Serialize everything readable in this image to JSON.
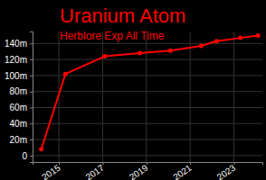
{
  "chart_data": {
    "type": "line",
    "title": "Uranium Atom",
    "subtitle": "Herblore Exp All Time",
    "x": [
      2014.2,
      2015.3,
      2017.1,
      2018.7,
      2020.1,
      2021.5,
      2022.2,
      2023.3,
      2024.1
    ],
    "values": [
      8,
      102,
      124,
      128,
      131,
      137,
      143,
      147,
      150
    ],
    "color": "#ff0000",
    "marker": "circle",
    "line_style": "solid",
    "xlim": [
      2013.8,
      2024.3
    ],
    "xticks": [
      2015,
      2017,
      2019,
      2021,
      2023
    ],
    "ylim": [
      -8,
      155
    ],
    "yticks": [
      0,
      {
        "value": 20,
        "label": "20m"
      },
      {
        "value": 40,
        "label": "40m"
      },
      {
        "value": 60,
        "label": "60m"
      },
      {
        "value": 80,
        "label": "80m"
      },
      {
        "value": 100,
        "label": "100m"
      },
      {
        "value": 120,
        "label": "120m"
      },
      {
        "value": 140,
        "label": "140m"
      }
    ],
    "grid": true
  }
}
